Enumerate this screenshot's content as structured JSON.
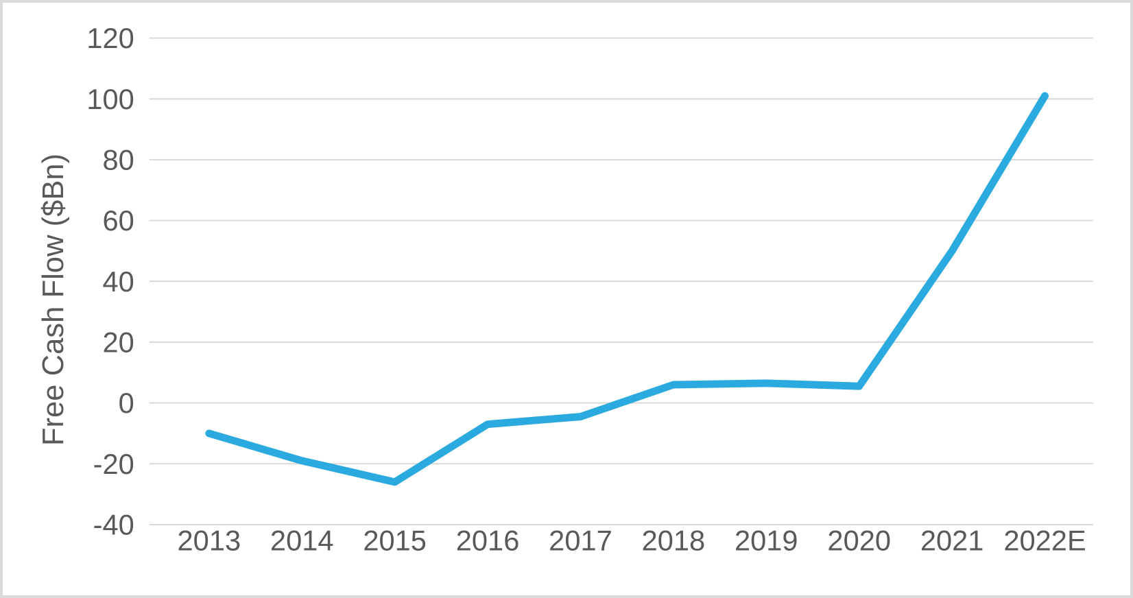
{
  "chart_data": {
    "type": "line",
    "title": "",
    "xlabel": "",
    "ylabel": "Free Cash Flow ($Bn)",
    "categories": [
      "2013",
      "2014",
      "2015",
      "2016",
      "2017",
      "2018",
      "2019",
      "2020",
      "2021",
      "2022E"
    ],
    "series": [
      {
        "name": "Free Cash Flow ($Bn)",
        "values": [
          -10,
          -19,
          -26,
          -7,
          -4.5,
          6,
          6.5,
          5.5,
          50,
          101
        ]
      }
    ],
    "ylim": [
      -40,
      120
    ],
    "yticks": [
      120,
      100,
      80,
      60,
      40,
      20,
      0,
      -20,
      -40
    ],
    "grid": true,
    "legend": false,
    "colors": {
      "line": "#2BAADF",
      "grid": "#D9D9D9",
      "text": "#595959",
      "border": "#D9D9D9",
      "background": "#FFFFFF"
    }
  }
}
